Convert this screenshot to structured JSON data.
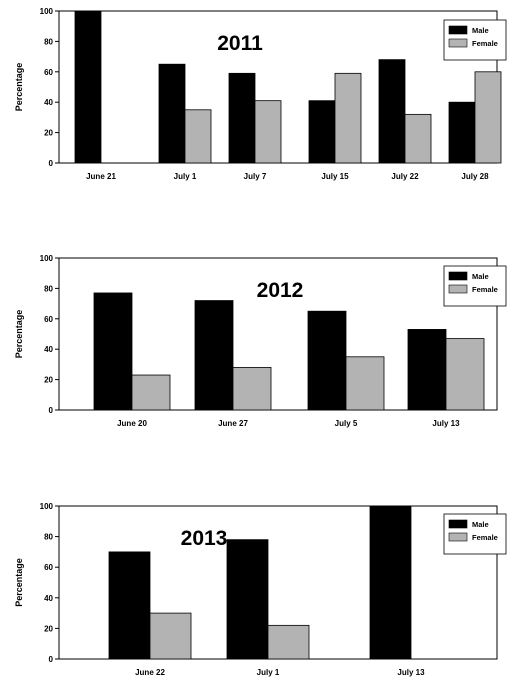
{
  "colors": {
    "male": "#000000",
    "female": "#b3b3b3",
    "axis": "#000000"
  },
  "chart_data": [
    {
      "type": "bar",
      "title": "2011",
      "ylabel": "Percentage",
      "xlabel": "",
      "ylim": [
        0,
        100
      ],
      "yticks": [
        "0",
        "20",
        "40",
        "60",
        "80",
        "100"
      ],
      "legend_position": "top-right",
      "grid": false,
      "categories": [
        "June 21",
        "July 1",
        "July 7",
        "July 15",
        "July 22",
        "July 28"
      ],
      "series": [
        {
          "name": "Male",
          "values": [
            100,
            65,
            59,
            41,
            68,
            40
          ]
        },
        {
          "name": "Female",
          "values": [
            0,
            35,
            41,
            59,
            32,
            60
          ]
        }
      ]
    },
    {
      "type": "bar",
      "title": "2012",
      "ylabel": "Percentage",
      "xlabel": "",
      "ylim": [
        0,
        100
      ],
      "yticks": [
        "0",
        "20",
        "40",
        "60",
        "80",
        "100"
      ],
      "legend_position": "top-right",
      "grid": false,
      "categories": [
        "June 20",
        "June 27",
        "July 5",
        "July 13"
      ],
      "series": [
        {
          "name": "Male",
          "values": [
            77,
            72,
            65,
            53
          ]
        },
        {
          "name": "Female",
          "values": [
            23,
            28,
            35,
            47
          ]
        }
      ]
    },
    {
      "type": "bar",
      "title": "2013",
      "ylabel": "Percentage",
      "xlabel": "",
      "ylim": [
        0,
        100
      ],
      "yticks": [
        "0",
        "20",
        "40",
        "60",
        "80",
        "100"
      ],
      "legend_position": "top-right",
      "grid": false,
      "categories": [
        "June 22",
        "July 1",
        "July 13"
      ],
      "series": [
        {
          "name": "Male",
          "values": [
            70,
            78,
            100
          ]
        },
        {
          "name": "Female",
          "values": [
            30,
            22,
            0
          ]
        }
      ]
    }
  ]
}
